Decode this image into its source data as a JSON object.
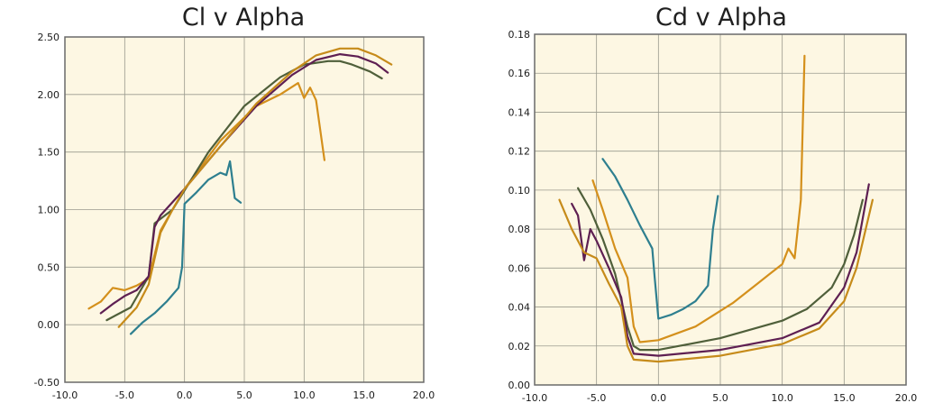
{
  "chart_data": [
    {
      "type": "line",
      "title": "Cl v Alpha",
      "xlabel": "",
      "ylabel": "",
      "xlim": [
        -10,
        20
      ],
      "ylim": [
        -0.5,
        2.5
      ],
      "x_ticks": [
        "-10.0",
        "-5.0",
        "0.0",
        "5.0",
        "10.0",
        "15.0",
        "20.0"
      ],
      "y_ticks": [
        "-0.50",
        "0.00",
        "0.50",
        "1.00",
        "1.50",
        "2.00",
        "2.50"
      ],
      "grid": true,
      "series": [
        {
          "color": "#2e7f8f",
          "x": [
            -4.5,
            -3.5,
            -2.5,
            -1.5,
            -0.5,
            -0.2,
            0.0,
            1.0,
            2.0,
            3.0,
            3.5,
            3.8,
            4.2,
            4.7
          ],
          "y": [
            -0.08,
            0.02,
            0.1,
            0.2,
            0.32,
            0.5,
            1.05,
            1.15,
            1.26,
            1.32,
            1.3,
            1.42,
            1.1,
            1.06
          ]
        },
        {
          "color": "#d4901c",
          "x": [
            -8.0,
            -7.0,
            -6.0,
            -5.0,
            -4.0,
            -3.0,
            -2.0,
            0.0,
            3.0,
            6.0,
            8.0,
            9.5,
            10.0,
            10.5,
            11.0,
            11.7
          ],
          "y": [
            0.14,
            0.2,
            0.32,
            0.3,
            0.34,
            0.4,
            0.82,
            1.18,
            1.6,
            1.9,
            2.0,
            2.1,
            1.97,
            2.06,
            1.95,
            1.43
          ]
        },
        {
          "color": "#4f5f3a",
          "x": [
            -6.5,
            -4.5,
            -3.0,
            -2.5,
            -1.0,
            2.0,
            5.0,
            8.0,
            10.0,
            12.0,
            13.0,
            14.0,
            15.5,
            16.5
          ],
          "y": [
            0.04,
            0.15,
            0.42,
            0.88,
            1.0,
            1.5,
            1.9,
            2.15,
            2.26,
            2.29,
            2.29,
            2.26,
            2.2,
            2.14
          ]
        },
        {
          "color": "#5e1f52",
          "x": [
            -7.0,
            -6.0,
            -5.0,
            -4.0,
            -3.0,
            -2.5,
            -2.0,
            0.0,
            3.0,
            6.0,
            9.0,
            11.0,
            13.0,
            14.5,
            16.0,
            17.0
          ],
          "y": [
            0.1,
            0.18,
            0.25,
            0.3,
            0.42,
            0.85,
            0.95,
            1.18,
            1.55,
            1.9,
            2.17,
            2.3,
            2.35,
            2.33,
            2.27,
            2.19
          ]
        },
        {
          "color": "#c68b1a",
          "x": [
            -5.5,
            -4.0,
            -3.0,
            -2.0,
            -1.0,
            0.0,
            3.0,
            6.0,
            9.0,
            11.0,
            13.0,
            14.5,
            16.0,
            17.3
          ],
          "y": [
            -0.02,
            0.15,
            0.35,
            0.8,
            1.0,
            1.18,
            1.55,
            1.92,
            2.2,
            2.34,
            2.4,
            2.4,
            2.34,
            2.26
          ]
        }
      ]
    },
    {
      "type": "line",
      "title": "Cd v Alpha",
      "xlabel": "",
      "ylabel": "",
      "xlim": [
        -10,
        20
      ],
      "ylim": [
        0,
        0.18
      ],
      "x_ticks": [
        "-10.0",
        "-5.0",
        "0.0",
        "5.0",
        "10.0",
        "15.0",
        "20.0"
      ],
      "y_ticks": [
        "0.00",
        "0.02",
        "0.04",
        "0.06",
        "0.08",
        "0.10",
        "0.12",
        "0.14",
        "0.16",
        "0.18"
      ],
      "grid": true,
      "series": [
        {
          "color": "#2e7f8f",
          "x": [
            -4.5,
            -3.5,
            -2.5,
            -1.5,
            -0.5,
            -0.3,
            0.0,
            1.0,
            2.0,
            3.0,
            3.5,
            4.0,
            4.4,
            4.8
          ],
          "y": [
            0.116,
            0.107,
            0.095,
            0.082,
            0.07,
            0.055,
            0.034,
            0.036,
            0.039,
            0.043,
            0.047,
            0.051,
            0.08,
            0.097
          ]
        },
        {
          "color": "#d4901c",
          "x": [
            -5.3,
            -4.5,
            -3.5,
            -2.5,
            -2.0,
            -1.5,
            0.0,
            3.0,
            6.0,
            8.0,
            9.0,
            10.0,
            10.5,
            11.0,
            11.5,
            11.8
          ],
          "y": [
            0.105,
            0.09,
            0.07,
            0.055,
            0.03,
            0.022,
            0.023,
            0.03,
            0.042,
            0.052,
            0.057,
            0.062,
            0.07,
            0.065,
            0.095,
            0.169
          ]
        },
        {
          "color": "#4f5f3a",
          "x": [
            -6.5,
            -5.5,
            -4.5,
            -3.5,
            -2.5,
            -2.0,
            -1.5,
            0.0,
            5.0,
            10.0,
            12.0,
            14.0,
            15.0,
            15.8,
            16.5
          ],
          "y": [
            0.101,
            0.09,
            0.075,
            0.057,
            0.03,
            0.02,
            0.018,
            0.018,
            0.024,
            0.033,
            0.039,
            0.05,
            0.062,
            0.077,
            0.095
          ]
        },
        {
          "color": "#5e1f52",
          "x": [
            -7.0,
            -6.5,
            -6.0,
            -5.5,
            -5.0,
            -4.0,
            -3.0,
            -2.5,
            -2.0,
            0.0,
            5.0,
            10.0,
            13.0,
            15.0,
            16.0,
            17.0
          ],
          "y": [
            0.093,
            0.087,
            0.064,
            0.08,
            0.074,
            0.06,
            0.045,
            0.025,
            0.016,
            0.015,
            0.018,
            0.024,
            0.032,
            0.05,
            0.068,
            0.103
          ]
        },
        {
          "color": "#c68b1a",
          "x": [
            -8.0,
            -7.0,
            -6.0,
            -5.0,
            -4.0,
            -3.0,
            -2.5,
            -2.0,
            0.0,
            5.0,
            10.0,
            13.0,
            15.0,
            16.0,
            17.3
          ],
          "y": [
            0.095,
            0.08,
            0.068,
            0.065,
            0.052,
            0.04,
            0.02,
            0.013,
            0.012,
            0.015,
            0.021,
            0.029,
            0.043,
            0.06,
            0.095
          ]
        }
      ]
    }
  ]
}
